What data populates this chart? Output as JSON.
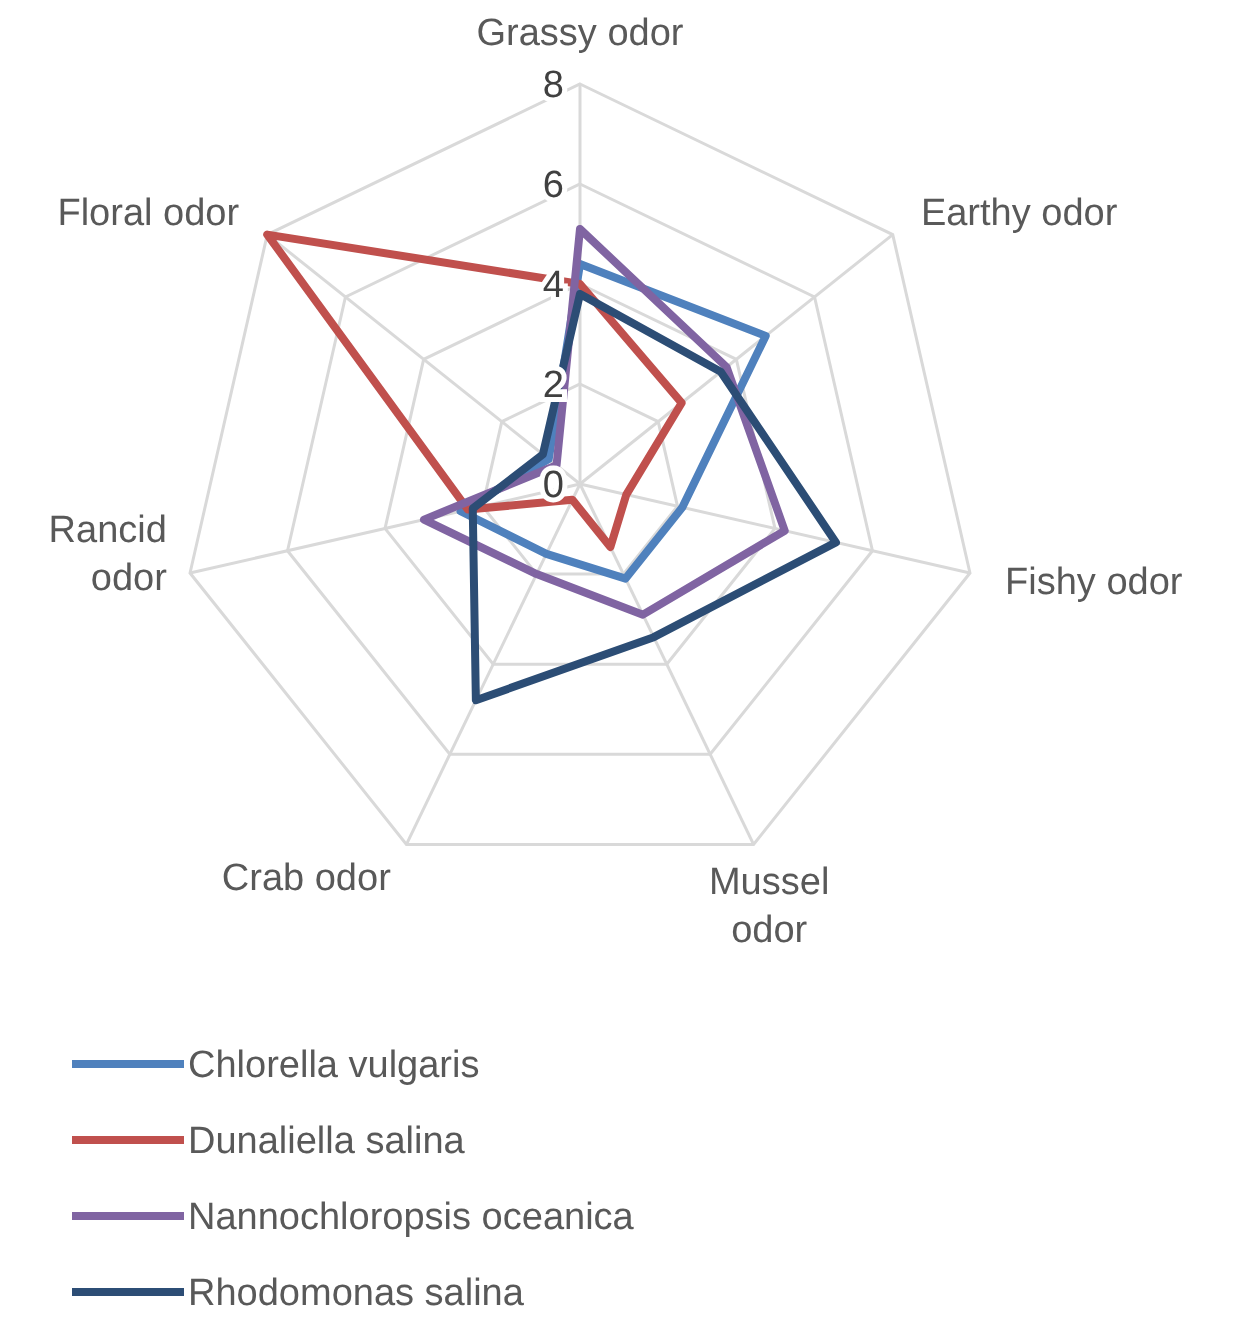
{
  "chart_data": {
    "type": "radar",
    "categories": [
      "Grassy odor",
      "Earthy odor",
      "Fishy odor",
      "Mussel odor",
      "Crab odor",
      "Rancid odor",
      "Floral odor"
    ],
    "ylim": [
      0,
      8
    ],
    "yticks": [
      0,
      2,
      4,
      6,
      8
    ],
    "grid": true,
    "legend": "bottom",
    "marker": "none",
    "series": [
      {
        "name": "Chlorella vulgaris",
        "color": "#4f81bd",
        "values": [
          4.4,
          4.75,
          2.1,
          2.1,
          1.55,
          2.45,
          0.8
        ]
      },
      {
        "name": "Dunaliella salina",
        "color": "#c0504d",
        "values": [
          4.0,
          2.6,
          0.95,
          1.4,
          0.35,
          2.3,
          8
        ]
      },
      {
        "name": "Nannochloropsis oceanica",
        "color": "#8064a2",
        "values": [
          5.1,
          3.75,
          4.2,
          2.9,
          2.0,
          3.2,
          0.6
        ]
      },
      {
        "name": "Rhodomonas salina",
        "color": "#2c4d75",
        "values": [
          3.8,
          3.6,
          5.25,
          3.4,
          4.8,
          2.2,
          0.95
        ]
      }
    ]
  }
}
